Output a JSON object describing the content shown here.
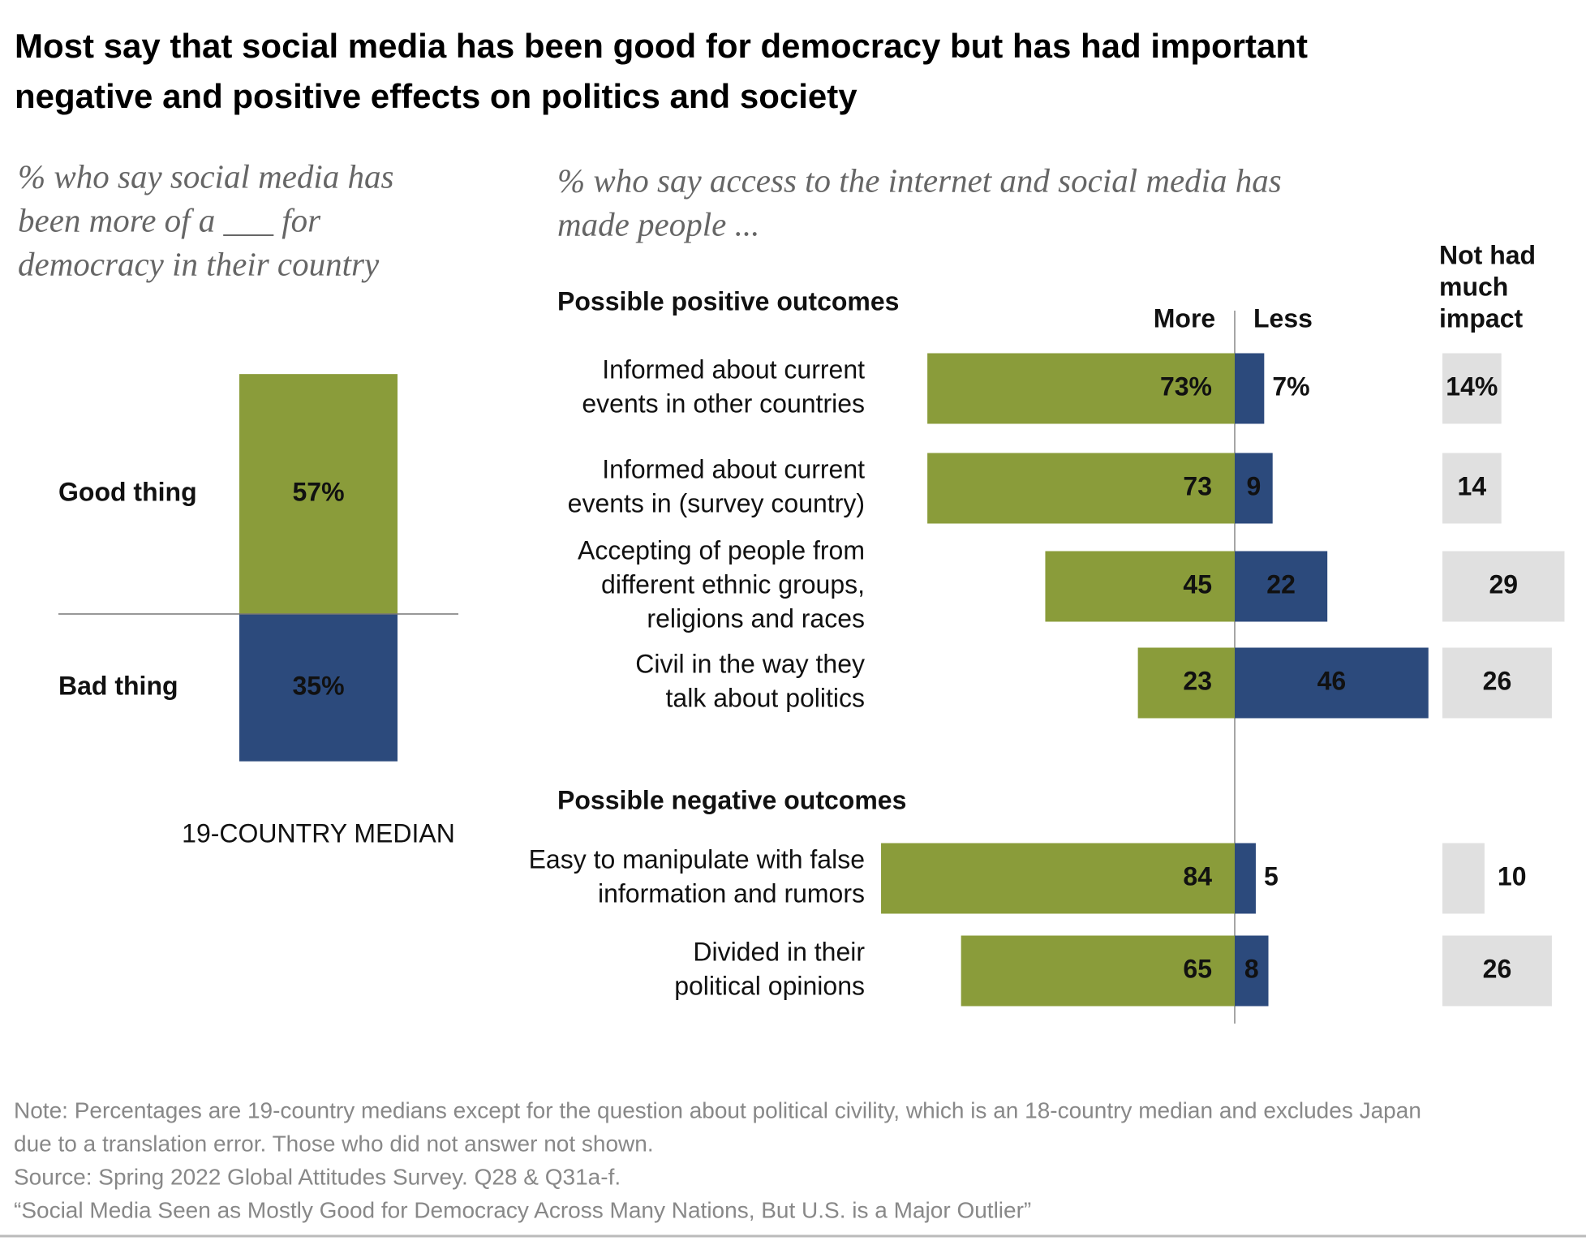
{
  "title": [
    "Most say that social media has been good for democracy but has had important",
    "negative and positive effects on politics and society"
  ],
  "chart_data": [
    {
      "type": "stacked-column",
      "subtitle": [
        "% who say social media has",
        "been more of a ___ for",
        "democracy in their country"
      ],
      "categories": [
        "Good thing",
        "Bad thing"
      ],
      "values": [
        57,
        35
      ],
      "value_labels": [
        "57%",
        "35%"
      ],
      "colors": [
        "#8a9c3a",
        "#2c4a7c"
      ],
      "footnote": "19-COUNTRY MEDIAN"
    },
    {
      "type": "diverging-bar",
      "subtitle": [
        "% who say access to the internet and social media has",
        "made people ..."
      ],
      "groups": [
        {
          "label": "Possible positive outcomes",
          "categories": [
            [
              "Informed about current",
              "events in other countries"
            ],
            [
              "Informed about current",
              "events in (survey country)"
            ],
            [
              "Accepting of people from",
              "different ethnic groups,",
              "religions and races"
            ],
            [
              "Civil in the way they",
              "talk about politics"
            ]
          ]
        },
        {
          "label": "Possible negative outcomes",
          "categories": [
            [
              "Easy to manipulate with false",
              "information and rumors"
            ],
            [
              "Divided in their",
              "political opinions"
            ]
          ]
        }
      ],
      "series": [
        {
          "name": "More",
          "color": "#8a9c3a",
          "values": [
            73,
            73,
            45,
            23,
            84,
            65
          ],
          "value_labels": [
            "73%",
            "73",
            "45",
            "23",
            "84",
            "65"
          ]
        },
        {
          "name": "Less",
          "color": "#2c4a7c",
          "values": [
            7,
            9,
            22,
            46,
            5,
            8
          ],
          "value_labels": [
            "7%",
            "9",
            "22",
            "46",
            "5",
            "8"
          ]
        },
        {
          "name": [
            "Not had",
            "much",
            "impact"
          ],
          "color": "#e0e0e0",
          "values": [
            14,
            14,
            29,
            26,
            10,
            26
          ],
          "value_labels": [
            "14%",
            "14",
            "29",
            "26",
            "10",
            "26"
          ]
        }
      ]
    }
  ],
  "notes": [
    "Note: Percentages are 19-country medians except for the question about political civility, which is an 18-country median and excludes Japan",
    "due to a translation error. Those who did not answer not shown.",
    "Source: Spring 2022 Global Attitudes Survey. Q28 & Q31a-f.",
    "“Social Media Seen as Mostly Good for Democracy Across Many Nations, But U.S. is a Major Outlier”"
  ]
}
